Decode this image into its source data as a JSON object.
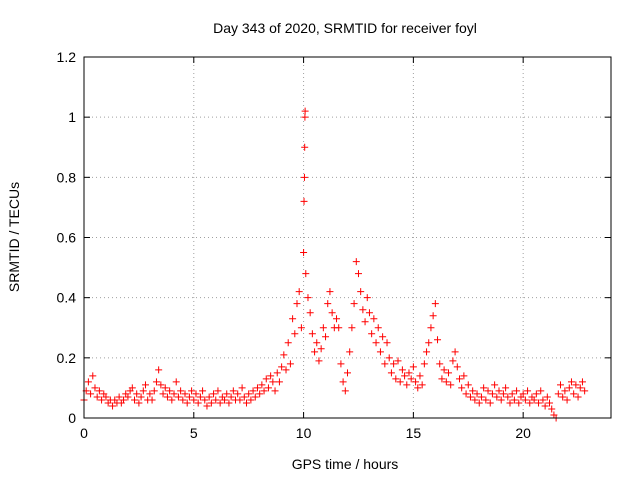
{
  "chart_data": {
    "type": "scatter",
    "title": "Day 343 of 2020, SRMTID for receiver foyl",
    "xlabel": "GPS time / hours",
    "ylabel": "SRMTID / TECUs",
    "xlim": [
      0,
      24
    ],
    "ylim": [
      0,
      1.2
    ],
    "x_ticks": [
      0,
      5,
      10,
      15,
      20
    ],
    "x_tick_labels": [
      "0",
      "5",
      "10",
      "15",
      "20"
    ],
    "y_ticks": [
      0,
      0.2,
      0.4,
      0.6,
      0.8,
      1.0,
      1.2
    ],
    "y_tick_labels": [
      "0",
      "0.2",
      "0.4",
      "0.6",
      "0.8",
      "1",
      "1.2"
    ],
    "grid": true,
    "marker": "+",
    "marker_color": "#ff0000",
    "series": [
      {
        "name": "SRMTID",
        "points": [
          [
            0.0,
            0.06
          ],
          [
            0.1,
            0.09
          ],
          [
            0.2,
            0.12
          ],
          [
            0.3,
            0.08
          ],
          [
            0.4,
            0.14
          ],
          [
            0.5,
            0.1
          ],
          [
            0.6,
            0.07
          ],
          [
            0.7,
            0.09
          ],
          [
            0.8,
            0.06
          ],
          [
            0.9,
            0.08
          ],
          [
            1.0,
            0.07
          ],
          [
            1.1,
            0.05
          ],
          [
            1.2,
            0.06
          ],
          [
            1.3,
            0.04
          ],
          [
            1.4,
            0.06
          ],
          [
            1.5,
            0.05
          ],
          [
            1.6,
            0.07
          ],
          [
            1.7,
            0.05
          ],
          [
            1.8,
            0.06
          ],
          [
            1.9,
            0.08
          ],
          [
            2.0,
            0.07
          ],
          [
            2.1,
            0.09
          ],
          [
            2.2,
            0.1
          ],
          [
            2.3,
            0.06
          ],
          [
            2.4,
            0.08
          ],
          [
            2.5,
            0.05
          ],
          [
            2.6,
            0.07
          ],
          [
            2.7,
            0.09
          ],
          [
            2.8,
            0.11
          ],
          [
            2.9,
            0.06
          ],
          [
            3.0,
            0.08
          ],
          [
            3.1,
            0.06
          ],
          [
            3.2,
            0.09
          ],
          [
            3.3,
            0.12
          ],
          [
            3.4,
            0.16
          ],
          [
            3.5,
            0.11
          ],
          [
            3.6,
            0.08
          ],
          [
            3.7,
            0.1
          ],
          [
            3.8,
            0.07
          ],
          [
            3.9,
            0.09
          ],
          [
            4.0,
            0.06
          ],
          [
            4.1,
            0.08
          ],
          [
            4.2,
            0.12
          ],
          [
            4.3,
            0.07
          ],
          [
            4.4,
            0.09
          ],
          [
            4.5,
            0.06
          ],
          [
            4.6,
            0.08
          ],
          [
            4.7,
            0.05
          ],
          [
            4.8,
            0.07
          ],
          [
            4.9,
            0.09
          ],
          [
            5.0,
            0.06
          ],
          [
            5.1,
            0.08
          ],
          [
            5.2,
            0.05
          ],
          [
            5.3,
            0.07
          ],
          [
            5.4,
            0.09
          ],
          [
            5.5,
            0.06
          ],
          [
            5.6,
            0.04
          ],
          [
            5.7,
            0.07
          ],
          [
            5.8,
            0.05
          ],
          [
            5.9,
            0.08
          ],
          [
            6.0,
            0.06
          ],
          [
            6.1,
            0.09
          ],
          [
            6.2,
            0.05
          ],
          [
            6.3,
            0.07
          ],
          [
            6.4,
            0.06
          ],
          [
            6.5,
            0.08
          ],
          [
            6.6,
            0.05
          ],
          [
            6.7,
            0.07
          ],
          [
            6.8,
            0.09
          ],
          [
            6.9,
            0.06
          ],
          [
            7.0,
            0.08
          ],
          [
            7.1,
            0.06
          ],
          [
            7.2,
            0.1
          ],
          [
            7.3,
            0.07
          ],
          [
            7.4,
            0.05
          ],
          [
            7.5,
            0.08
          ],
          [
            7.6,
            0.06
          ],
          [
            7.7,
            0.09
          ],
          [
            7.8,
            0.07
          ],
          [
            7.9,
            0.1
          ],
          [
            8.0,
            0.08
          ],
          [
            8.1,
            0.11
          ],
          [
            8.2,
            0.09
          ],
          [
            8.3,
            0.13
          ],
          [
            8.4,
            0.1
          ],
          [
            8.5,
            0.14
          ],
          [
            8.6,
            0.12
          ],
          [
            8.7,
            0.09
          ],
          [
            8.8,
            0.15
          ],
          [
            8.9,
            0.12
          ],
          [
            9.0,
            0.17
          ],
          [
            9.1,
            0.21
          ],
          [
            9.2,
            0.16
          ],
          [
            9.3,
            0.25
          ],
          [
            9.4,
            0.18
          ],
          [
            9.5,
            0.33
          ],
          [
            9.6,
            0.28
          ],
          [
            9.7,
            0.38
          ],
          [
            9.8,
            0.42
          ],
          [
            9.9,
            0.3
          ],
          [
            10.0,
            0.55
          ],
          [
            10.02,
            0.72
          ],
          [
            10.04,
            0.8
          ],
          [
            10.05,
            0.9
          ],
          [
            10.06,
            1.0
          ],
          [
            10.07,
            1.02
          ],
          [
            10.1,
            0.48
          ],
          [
            10.2,
            0.4
          ],
          [
            10.3,
            0.35
          ],
          [
            10.4,
            0.28
          ],
          [
            10.5,
            0.22
          ],
          [
            10.6,
            0.25
          ],
          [
            10.7,
            0.19
          ],
          [
            10.8,
            0.23
          ],
          [
            10.9,
            0.3
          ],
          [
            11.0,
            0.27
          ],
          [
            11.1,
            0.38
          ],
          [
            11.2,
            0.42
          ],
          [
            11.3,
            0.35
          ],
          [
            11.4,
            0.3
          ],
          [
            11.5,
            0.33
          ],
          [
            11.6,
            0.3
          ],
          [
            11.7,
            0.18
          ],
          [
            11.8,
            0.12
          ],
          [
            11.9,
            0.09
          ],
          [
            12.0,
            0.15
          ],
          [
            12.1,
            0.22
          ],
          [
            12.2,
            0.3
          ],
          [
            12.3,
            0.38
          ],
          [
            12.4,
            0.52
          ],
          [
            12.5,
            0.48
          ],
          [
            12.6,
            0.42
          ],
          [
            12.7,
            0.36
          ],
          [
            12.8,
            0.32
          ],
          [
            12.9,
            0.4
          ],
          [
            13.0,
            0.35
          ],
          [
            13.1,
            0.28
          ],
          [
            13.2,
            0.33
          ],
          [
            13.3,
            0.25
          ],
          [
            13.4,
            0.3
          ],
          [
            13.5,
            0.22
          ],
          [
            13.6,
            0.27
          ],
          [
            13.7,
            0.18
          ],
          [
            13.8,
            0.25
          ],
          [
            13.9,
            0.2
          ],
          [
            14.0,
            0.15
          ],
          [
            14.1,
            0.18
          ],
          [
            14.2,
            0.13
          ],
          [
            14.3,
            0.19
          ],
          [
            14.4,
            0.12
          ],
          [
            14.5,
            0.16
          ],
          [
            14.6,
            0.14
          ],
          [
            14.7,
            0.11
          ],
          [
            14.8,
            0.15
          ],
          [
            14.9,
            0.13
          ],
          [
            15.0,
            0.17
          ],
          [
            15.1,
            0.12
          ],
          [
            15.2,
            0.1
          ],
          [
            15.3,
            0.14
          ],
          [
            15.4,
            0.11
          ],
          [
            15.5,
            0.18
          ],
          [
            15.6,
            0.22
          ],
          [
            15.7,
            0.25
          ],
          [
            15.8,
            0.3
          ],
          [
            15.9,
            0.34
          ],
          [
            16.0,
            0.38
          ],
          [
            16.1,
            0.26
          ],
          [
            16.2,
            0.18
          ],
          [
            16.3,
            0.13
          ],
          [
            16.4,
            0.16
          ],
          [
            16.5,
            0.12
          ],
          [
            16.6,
            0.15
          ],
          [
            16.7,
            0.11
          ],
          [
            16.8,
            0.19
          ],
          [
            16.9,
            0.22
          ],
          [
            17.0,
            0.17
          ],
          [
            17.1,
            0.13
          ],
          [
            17.2,
            0.1
          ],
          [
            17.3,
            0.14
          ],
          [
            17.4,
            0.08
          ],
          [
            17.5,
            0.11
          ],
          [
            17.6,
            0.07
          ],
          [
            17.7,
            0.09
          ],
          [
            17.8,
            0.06
          ],
          [
            17.9,
            0.08
          ],
          [
            18.0,
            0.05
          ],
          [
            18.1,
            0.07
          ],
          [
            18.2,
            0.1
          ],
          [
            18.3,
            0.06
          ],
          [
            18.4,
            0.09
          ],
          [
            18.5,
            0.05
          ],
          [
            18.6,
            0.08
          ],
          [
            18.7,
            0.11
          ],
          [
            18.8,
            0.07
          ],
          [
            18.9,
            0.09
          ],
          [
            19.0,
            0.06
          ],
          [
            19.1,
            0.08
          ],
          [
            19.2,
            0.1
          ],
          [
            19.3,
            0.07
          ],
          [
            19.4,
            0.05
          ],
          [
            19.5,
            0.08
          ],
          [
            19.6,
            0.06
          ],
          [
            19.7,
            0.09
          ],
          [
            19.8,
            0.05
          ],
          [
            19.9,
            0.07
          ],
          [
            20.0,
            0.08
          ],
          [
            20.1,
            0.06
          ],
          [
            20.2,
            0.09
          ],
          [
            20.3,
            0.05
          ],
          [
            20.4,
            0.07
          ],
          [
            20.5,
            0.06
          ],
          [
            20.6,
            0.08
          ],
          [
            20.7,
            0.05
          ],
          [
            20.8,
            0.09
          ],
          [
            20.9,
            0.06
          ],
          [
            21.0,
            0.04
          ],
          [
            21.1,
            0.07
          ],
          [
            21.2,
            0.05
          ],
          [
            21.3,
            0.03
          ],
          [
            21.4,
            0.01
          ],
          [
            21.5,
            0.0
          ],
          [
            21.6,
            0.08
          ],
          [
            21.7,
            0.11
          ],
          [
            21.8,
            0.07
          ],
          [
            21.9,
            0.09
          ],
          [
            22.0,
            0.06
          ],
          [
            22.1,
            0.1
          ],
          [
            22.2,
            0.12
          ],
          [
            22.3,
            0.08
          ],
          [
            22.4,
            0.11
          ],
          [
            22.5,
            0.07
          ],
          [
            22.6,
            0.1
          ],
          [
            22.7,
            0.12
          ],
          [
            22.8,
            0.09
          ]
        ]
      }
    ]
  }
}
